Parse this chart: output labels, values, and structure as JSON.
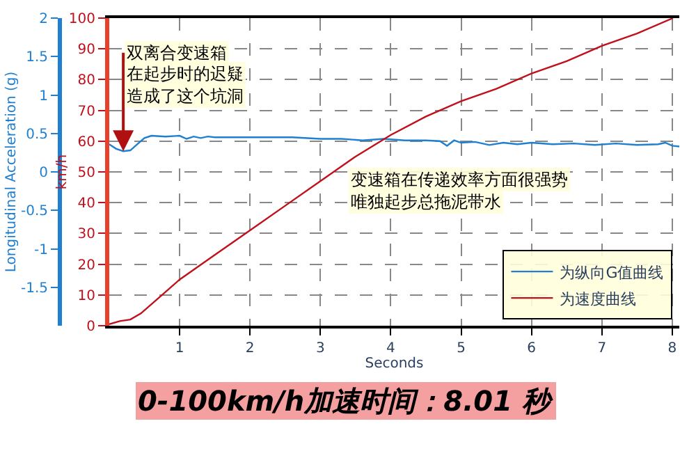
{
  "chart_data": {
    "type": "line",
    "title": "0-100km/h加速时间：8.01 秒",
    "xlabel": "Seconds",
    "ylabel": "Longitudinal Acceleration (g)",
    "y2label": "km/h",
    "xlim": [
      0,
      8.1
    ],
    "xticks": [
      1,
      2,
      3,
      4,
      5,
      6,
      7,
      8
    ],
    "ylim": [
      -2,
      2
    ],
    "yticks": [
      -1.5,
      -1,
      -0.5,
      0,
      0.5,
      1,
      1.5,
      2
    ],
    "y2lim": [
      0,
      100
    ],
    "y2ticks": [
      0,
      10,
      20,
      30,
      40,
      50,
      60,
      70,
      80,
      90,
      100
    ],
    "grid": true,
    "legend": "bottom right",
    "series": [
      {
        "name": "为纵向G值曲线",
        "color": "#1f7fd0",
        "axis": "y",
        "x": [
          0,
          0.1,
          0.2,
          0.3,
          0.4,
          0.5,
          0.6,
          0.8,
          1.0,
          1.1,
          1.2,
          1.3,
          1.4,
          1.5,
          1.7,
          2.0,
          2.3,
          2.6,
          3.0,
          3.3,
          3.6,
          3.9,
          4.2,
          4.5,
          4.7,
          4.8,
          4.9,
          5.0,
          5.2,
          5.4,
          5.6,
          5.8,
          6.0,
          6.3,
          6.6,
          6.9,
          7.2,
          7.5,
          7.8,
          7.9,
          8.0,
          8.1
        ],
        "values": [
          0.36,
          0.3,
          0.27,
          0.28,
          0.36,
          0.44,
          0.47,
          0.46,
          0.47,
          0.43,
          0.46,
          0.44,
          0.46,
          0.45,
          0.45,
          0.45,
          0.45,
          0.45,
          0.43,
          0.43,
          0.41,
          0.43,
          0.41,
          0.41,
          0.4,
          0.34,
          0.41,
          0.38,
          0.39,
          0.35,
          0.38,
          0.36,
          0.38,
          0.36,
          0.37,
          0.35,
          0.37,
          0.35,
          0.36,
          0.38,
          0.34,
          0.33
        ]
      },
      {
        "name": "为速度曲线",
        "color": "#c0101c",
        "axis": "y2",
        "x": [
          0,
          0.15,
          0.3,
          0.45,
          0.75,
          1.0,
          1.5,
          2.0,
          2.5,
          3.0,
          3.5,
          4.0,
          4.5,
          5.0,
          5.5,
          6.0,
          6.5,
          7.0,
          7.5,
          8.01
        ],
        "values": [
          0.5,
          1.5,
          2,
          4,
          10,
          15,
          23,
          31,
          39,
          47,
          55,
          62,
          68,
          73,
          77,
          82,
          86,
          91,
          95,
          100
        ]
      }
    ],
    "annotations": [
      {
        "text": "双离合变速箱",
        "x": 0.2,
        "y": 0.27
      },
      "在起步时的迟疑",
      "造成了这个坑洞",
      "变速箱在传递效率方面很强势",
      "唯独起步总拖泥带水"
    ]
  }
}
